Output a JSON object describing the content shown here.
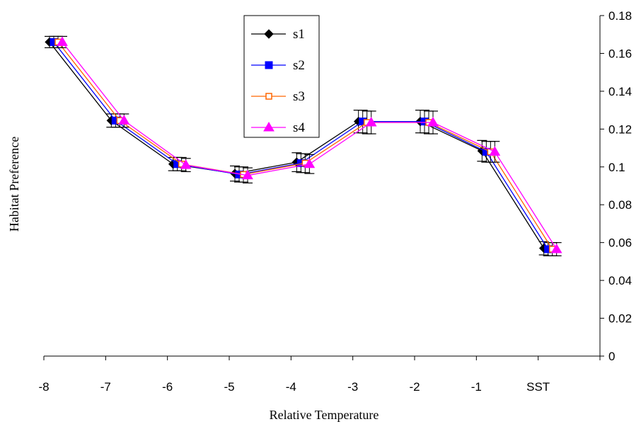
{
  "chart_data": {
    "type": "line",
    "xlabel": "Relative Temperature",
    "ylabel": "Habitat Preference",
    "categories": [
      "-8",
      "-7",
      "-6",
      "-5",
      "-4",
      "-3",
      "-2",
      "-1",
      "SST"
    ],
    "ylim": [
      0,
      0.18
    ],
    "yticks": [
      "0",
      "0.02",
      "0.04",
      "0.06",
      "0.08",
      "0.1",
      "0.12",
      "0.14",
      "0.16",
      "0.18"
    ],
    "y_axis_side": "right",
    "grid": false,
    "legend_position": "top-center",
    "series": [
      {
        "name": "s1",
        "color": "#000000",
        "marker": "diamond",
        "values": [
          0.166,
          0.1245,
          0.1015,
          0.0965,
          0.1025,
          0.124,
          0.124,
          0.1085,
          0.057
        ],
        "errors": [
          0.003,
          0.0035,
          0.0035,
          0.004,
          0.005,
          0.006,
          0.006,
          0.0055,
          0.0035
        ]
      },
      {
        "name": "s2",
        "color": "#0000ff",
        "marker": "square",
        "values": [
          0.166,
          0.1245,
          0.1015,
          0.096,
          0.102,
          0.124,
          0.124,
          0.108,
          0.0565
        ],
        "errors": [
          0.003,
          0.0035,
          0.0035,
          0.004,
          0.005,
          0.006,
          0.006,
          0.0055,
          0.0035
        ]
      },
      {
        "name": "s3",
        "color": "#ff6600",
        "marker": "open-square",
        "values": [
          0.166,
          0.1245,
          0.1015,
          0.096,
          0.102,
          0.1235,
          0.1235,
          0.108,
          0.0565
        ],
        "errors": [
          0.003,
          0.0035,
          0.0035,
          0.004,
          0.005,
          0.006,
          0.006,
          0.0055,
          0.0035
        ]
      },
      {
        "name": "s4",
        "color": "#ff00ff",
        "marker": "triangle",
        "values": [
          0.166,
          0.1245,
          0.101,
          0.0955,
          0.1015,
          0.1235,
          0.1235,
          0.108,
          0.0565
        ],
        "errors": [
          0.003,
          0.0035,
          0.0035,
          0.004,
          0.005,
          0.006,
          0.006,
          0.0055,
          0.0035
        ]
      }
    ]
  }
}
